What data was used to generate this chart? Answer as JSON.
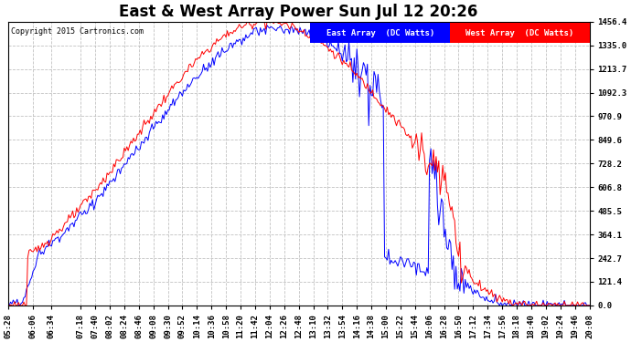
{
  "title": "East & West Array Power Sun Jul 12 20:26",
  "copyright": "Copyright 2015 Cartronics.com",
  "east_label": "East Array  (DC Watts)",
  "west_label": "West Array  (DC Watts)",
  "east_color": "#0000ff",
  "west_color": "#ff0000",
  "background_color": "#ffffff",
  "plot_bg_color": "#ffffff",
  "grid_color": "#bbbbbb",
  "yticks": [
    0.0,
    121.4,
    242.7,
    364.1,
    485.5,
    606.8,
    728.2,
    849.6,
    970.9,
    1092.3,
    1213.7,
    1335.0,
    1456.4
  ],
  "ymax": 1456.4,
  "ymin": 0.0,
  "title_fontsize": 12,
  "tick_fontsize": 6.5,
  "xtick_labels": [
    "05:28",
    "06:06",
    "06:34",
    "07:18",
    "07:40",
    "08:02",
    "08:24",
    "08:46",
    "09:08",
    "09:30",
    "09:52",
    "10:14",
    "10:36",
    "10:58",
    "11:20",
    "11:42",
    "12:04",
    "12:26",
    "12:48",
    "13:10",
    "13:32",
    "13:54",
    "14:16",
    "14:38",
    "15:00",
    "15:22",
    "15:44",
    "16:06",
    "16:28",
    "16:50",
    "17:12",
    "17:34",
    "17:56",
    "18:18",
    "18:40",
    "19:02",
    "19:24",
    "19:46",
    "20:08"
  ]
}
